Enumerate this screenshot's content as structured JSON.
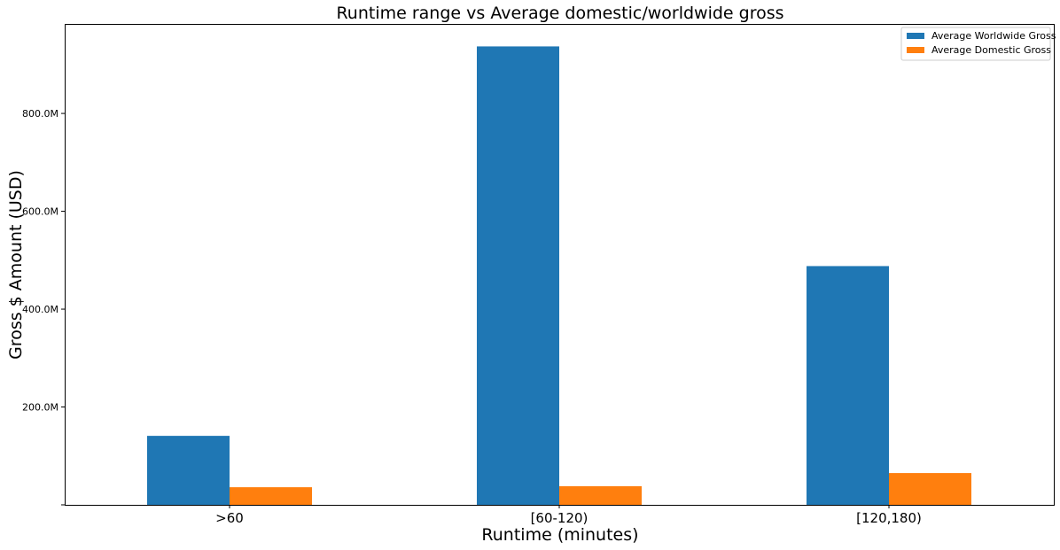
{
  "chart_data": {
    "type": "bar",
    "title": "Runtime range vs Average domestic/worldwide gross",
    "xlabel": "Runtime (minutes)",
    "ylabel": "Gross $ Amount (USD)",
    "categories": [
      ">60",
      "[60-120)",
      "[120,180)"
    ],
    "series": [
      {
        "name": "Average Worldwide Gross",
        "values": [
          141000000,
          937000000,
          488000000
        ],
        "color": "#1f77b4"
      },
      {
        "name": "Average Domestic Gross",
        "values": [
          36000000,
          38000000,
          65000000
        ],
        "color": "#ff7f0e"
      }
    ],
    "ylim": [
      0,
      983000000
    ],
    "yticks": [
      0,
      200000000,
      400000000,
      600000000,
      800000000
    ],
    "ytick_labels": [
      "",
      "200.0M",
      "400.0M",
      "600.0M",
      "800.0M"
    ],
    "grid": false,
    "legend_position": "top-right"
  }
}
